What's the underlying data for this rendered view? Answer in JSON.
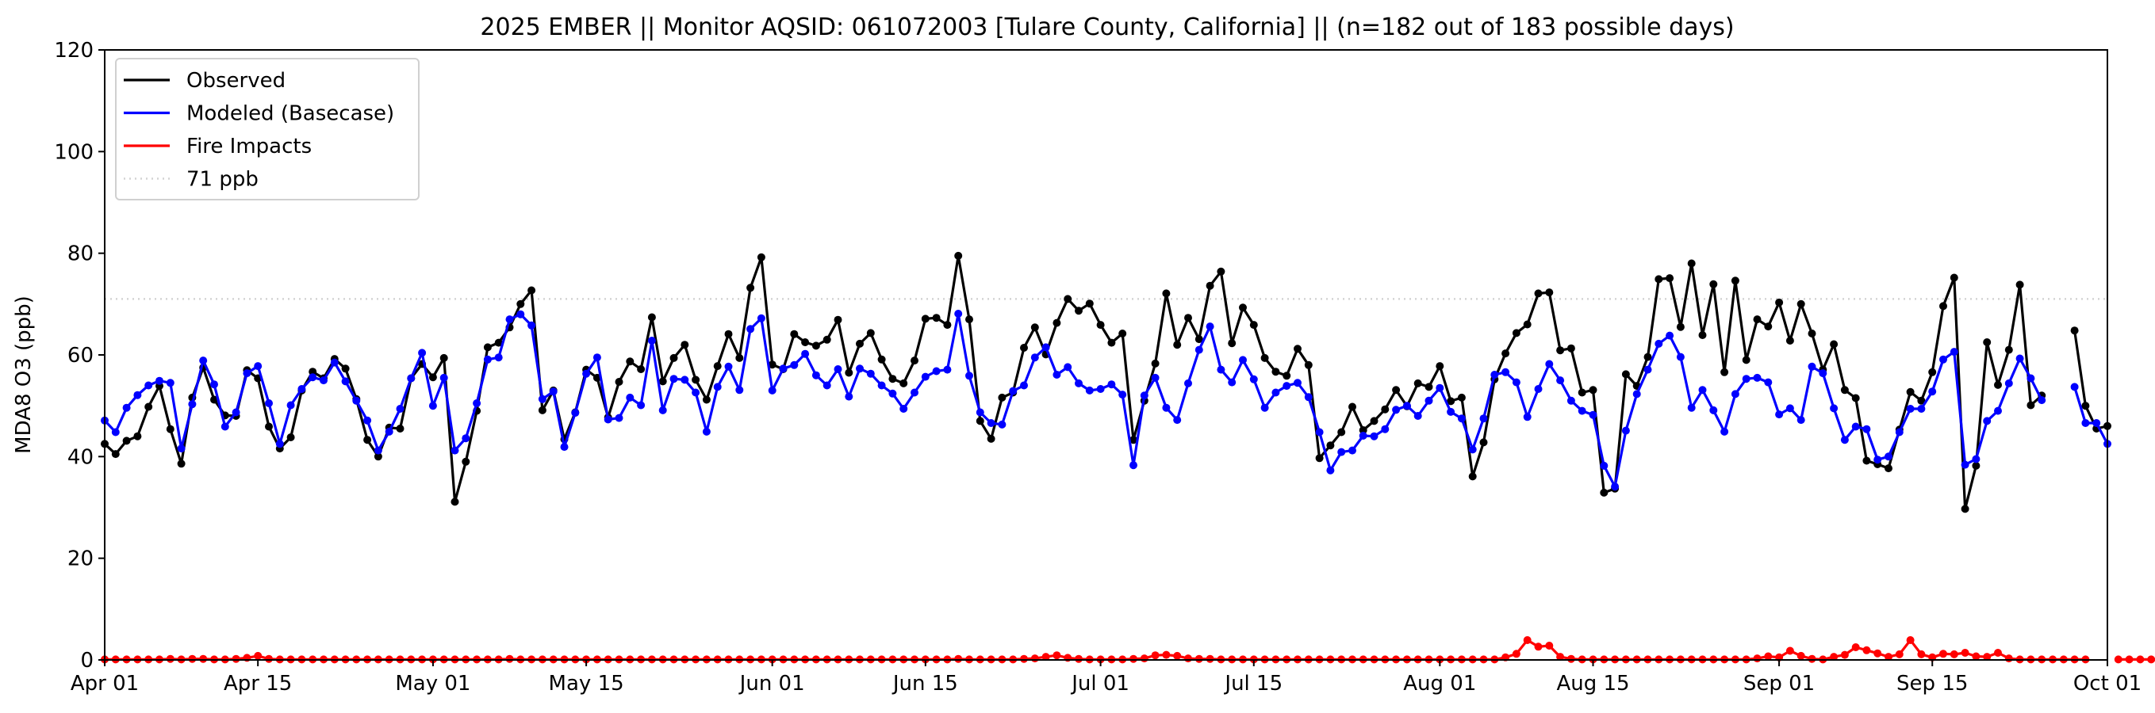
{
  "chart_data": {
    "type": "line",
    "title": "2025 EMBER || Monitor AQSID: 061072003 [Tulare County, California] || (n=182 out of 183 possible days)",
    "xlabel": "",
    "ylabel": "MDA8 O3 (ppb)",
    "x_start": "2025-04-01",
    "xlim": [
      "2025-04-01",
      "2025-10-01"
    ],
    "ylim": [
      0,
      120
    ],
    "xticks": [
      {
        "label": "Apr 01",
        "date": "2025-04-01"
      },
      {
        "label": "Apr 15",
        "date": "2025-04-15"
      },
      {
        "label": "May 01",
        "date": "2025-05-01"
      },
      {
        "label": "May 15",
        "date": "2025-05-15"
      },
      {
        "label": "Jun 01",
        "date": "2025-06-01"
      },
      {
        "label": "Jun 15",
        "date": "2025-06-15"
      },
      {
        "label": "Jul 01",
        "date": "2025-07-01"
      },
      {
        "label": "Jul 15",
        "date": "2025-07-15"
      },
      {
        "label": "Aug 01",
        "date": "2025-08-01"
      },
      {
        "label": "Aug 15",
        "date": "2025-08-15"
      },
      {
        "label": "Sep 01",
        "date": "2025-09-01"
      },
      {
        "label": "Sep 15",
        "date": "2025-09-15"
      },
      {
        "label": "Oct 01",
        "date": "2025-10-01"
      }
    ],
    "yticks": [
      0,
      20,
      40,
      60,
      80,
      100,
      120
    ],
    "grid": false,
    "legend_position": "top-left",
    "reference_line": {
      "name": "71 ppb",
      "y": 71,
      "color": "#d3d3d3",
      "style": "dotted"
    },
    "series": [
      {
        "name": "Observed",
        "color": "#000000",
        "values": [
          42.5,
          40.5,
          43.1,
          44.0,
          49.8,
          53.9,
          45.4,
          38.6,
          51.6,
          57.5,
          51.2,
          48.1,
          48.0,
          57.0,
          55.4,
          45.9,
          41.6,
          43.8,
          53.0,
          56.7,
          55.4,
          59.2,
          57.3,
          51.3,
          43.3,
          40.0,
          45.7,
          45.5,
          55.4,
          58.2,
          55.6,
          59.4,
          31.1,
          39.0,
          49.0,
          61.5,
          62.4,
          65.4,
          70.0,
          72.7,
          49.1,
          53.0,
          43.4,
          48.7,
          57.1,
          55.5,
          47.7,
          54.7,
          58.7,
          57.2,
          67.4,
          54.8,
          59.4,
          62.0,
          55.1,
          51.2,
          57.8,
          64.1,
          59.4,
          73.2,
          79.2,
          58.1,
          57.2,
          64.1,
          62.5,
          61.8,
          63.0,
          66.9,
          56.5,
          62.2,
          64.3,
          59.1,
          55.3,
          54.4,
          58.9,
          67.1,
          67.3,
          65.9,
          79.5,
          67.0,
          47.0,
          43.5,
          51.6,
          52.6,
          61.4,
          65.4,
          60.1,
          66.3,
          71.0,
          68.7,
          70.1,
          65.9,
          62.4,
          64.2,
          43.3,
          51.0,
          58.3,
          72.1,
          62.0,
          67.3,
          63.1,
          73.6,
          76.4,
          62.3,
          69.3,
          65.9,
          59.4,
          56.7,
          55.9,
          61.2,
          58.0,
          39.7,
          42.2,
          44.8,
          49.8,
          45.2,
          47.0,
          49.3,
          53.1,
          49.9,
          54.4,
          53.7,
          57.8,
          50.9,
          51.6,
          36.1,
          42.8,
          55.2,
          60.3,
          64.3,
          66.0,
          72.1,
          72.3,
          60.9,
          61.3,
          52.6,
          53.1,
          32.9,
          33.7,
          56.2,
          53.9,
          59.6,
          74.9,
          75.1,
          65.5,
          78.0,
          63.9,
          73.9,
          56.6,
          74.6,
          59.0,
          67.0,
          65.6,
          70.3,
          62.8,
          70.0,
          64.2,
          57.1,
          62.1,
          53.1,
          51.5,
          39.2,
          38.5,
          37.7,
          45.3,
          52.7,
          51.0,
          56.6,
          69.6,
          75.2,
          29.7,
          38.2,
          62.5,
          54.1,
          61.0,
          73.8,
          50.1,
          52.0,
          null,
          null,
          64.8,
          50.0,
          45.5,
          46.0
        ]
      },
      {
        "name": "Modeled (Basecase)",
        "color": "#0000ff",
        "values": [
          47.1,
          44.8,
          49.6,
          52.1,
          54.0,
          54.9,
          54.5,
          41.6,
          50.3,
          58.9,
          54.2,
          45.9,
          48.7,
          56.4,
          57.8,
          50.5,
          42.5,
          50.1,
          53.3,
          55.6,
          55.0,
          58.5,
          54.8,
          51.0,
          47.1,
          41.2,
          44.9,
          49.4,
          55.4,
          60.4,
          50.0,
          55.5,
          41.2,
          43.6,
          50.5,
          59.1,
          59.5,
          67.0,
          68.0,
          65.8,
          51.3,
          52.8,
          41.9,
          48.6,
          56.3,
          59.5,
          47.3,
          47.6,
          51.6,
          50.1,
          62.8,
          49.1,
          55.3,
          55.1,
          52.6,
          44.9,
          53.7,
          57.7,
          53.1,
          65.1,
          67.2,
          53.0,
          57.3,
          58.0,
          60.2,
          56.0,
          54.0,
          57.2,
          51.8,
          57.3,
          56.3,
          54.0,
          52.4,
          49.4,
          52.6,
          55.7,
          56.8,
          57.1,
          68.1,
          55.9,
          48.7,
          46.6,
          46.3,
          52.9,
          54.0,
          59.5,
          61.5,
          56.1,
          57.6,
          54.4,
          53.0,
          53.3,
          54.2,
          52.2,
          38.3,
          52.0,
          55.5,
          49.6,
          47.2,
          54.4,
          61.0,
          65.6,
          57.1,
          54.6,
          59.0,
          55.2,
          49.6,
          52.6,
          53.9,
          54.5,
          51.7,
          44.8,
          37.3,
          40.9,
          41.2,
          44.1,
          44.0,
          45.4,
          49.2,
          50.0,
          48.0,
          51.0,
          53.5,
          48.8,
          47.5,
          41.4,
          47.5,
          56.1,
          56.6,
          54.6,
          47.8,
          53.3,
          58.2,
          55.0,
          51.0,
          49.0,
          48.2,
          38.2,
          34.1,
          45.1,
          52.3,
          57.1,
          62.2,
          63.8,
          59.6,
          49.6,
          53.1,
          49.1,
          44.9,
          52.3,
          55.3,
          55.5,
          54.6,
          48.3,
          49.5,
          47.2,
          57.7,
          56.4,
          49.5,
          43.3,
          45.9,
          45.4,
          39.4,
          40.0,
          44.8,
          49.4,
          49.4,
          52.8,
          59.1,
          60.6,
          38.4,
          39.5,
          47.0,
          49.0,
          54.4,
          59.3,
          55.4,
          51.1,
          null,
          null,
          53.7,
          46.6,
          46.6,
          42.5
        ]
      },
      {
        "name": "Fire Impacts",
        "color": "#ff0000",
        "values": [
          0.1,
          0.1,
          0.1,
          0.1,
          0.1,
          0.1,
          0.2,
          0.1,
          0.2,
          0.2,
          0.1,
          0.1,
          0.2,
          0.4,
          0.8,
          0.2,
          0.1,
          0.1,
          0.1,
          0.1,
          0.1,
          0.1,
          0.1,
          0.1,
          0.1,
          0.1,
          0.1,
          0.1,
          0.1,
          0.1,
          0.1,
          0.1,
          0.1,
          0.1,
          0.1,
          0.1,
          0.1,
          0.2,
          0.1,
          0.1,
          0.1,
          0.1,
          0.1,
          0.1,
          0.1,
          0.1,
          0.1,
          0.1,
          0.1,
          0.1,
          0.1,
          0.1,
          0.1,
          0.1,
          0.1,
          0.1,
          0.1,
          0.1,
          0.1,
          0.1,
          0.1,
          0.1,
          0.1,
          0.1,
          0.1,
          0.1,
          0.1,
          0.1,
          0.1,
          0.1,
          0.1,
          0.1,
          0.1,
          0.1,
          0.1,
          0.1,
          0.1,
          0.1,
          0.2,
          0.1,
          0.1,
          0.1,
          0.1,
          0.1,
          0.2,
          0.3,
          0.6,
          0.9,
          0.4,
          0.2,
          0.1,
          0.1,
          0.1,
          0.1,
          0.2,
          0.3,
          0.9,
          1.0,
          0.8,
          0.3,
          0.2,
          0.2,
          0.1,
          0.1,
          0.1,
          0.1,
          0.1,
          0.1,
          0.1,
          0.1,
          0.1,
          0.1,
          0.1,
          0.1,
          0.1,
          0.1,
          0.1,
          0.1,
          0.1,
          0.1,
          0.1,
          0.1,
          0.1,
          0.1,
          0.1,
          0.1,
          0.1,
          0.1,
          0.5,
          1.2,
          3.9,
          2.6,
          2.8,
          0.6,
          0.2,
          0.1,
          0.1,
          0.1,
          0.1,
          0.1,
          0.1,
          0.1,
          0.1,
          0.1,
          0.1,
          0.1,
          0.1,
          0.1,
          0.1,
          0.1,
          0.1,
          0.3,
          0.7,
          0.5,
          1.8,
          0.8,
          0.2,
          0.1,
          0.6,
          1.0,
          2.5,
          1.9,
          1.3,
          0.6,
          1.1,
          3.9,
          1.1,
          0.5,
          1.2,
          1.1,
          1.4,
          0.7,
          0.6,
          1.4,
          0.3,
          0.1,
          0.1,
          0.1,
          0.1,
          0.1,
          0.1,
          0.1,
          null,
          null,
          0.1,
          0.1,
          0.1,
          0.1
        ]
      }
    ]
  }
}
